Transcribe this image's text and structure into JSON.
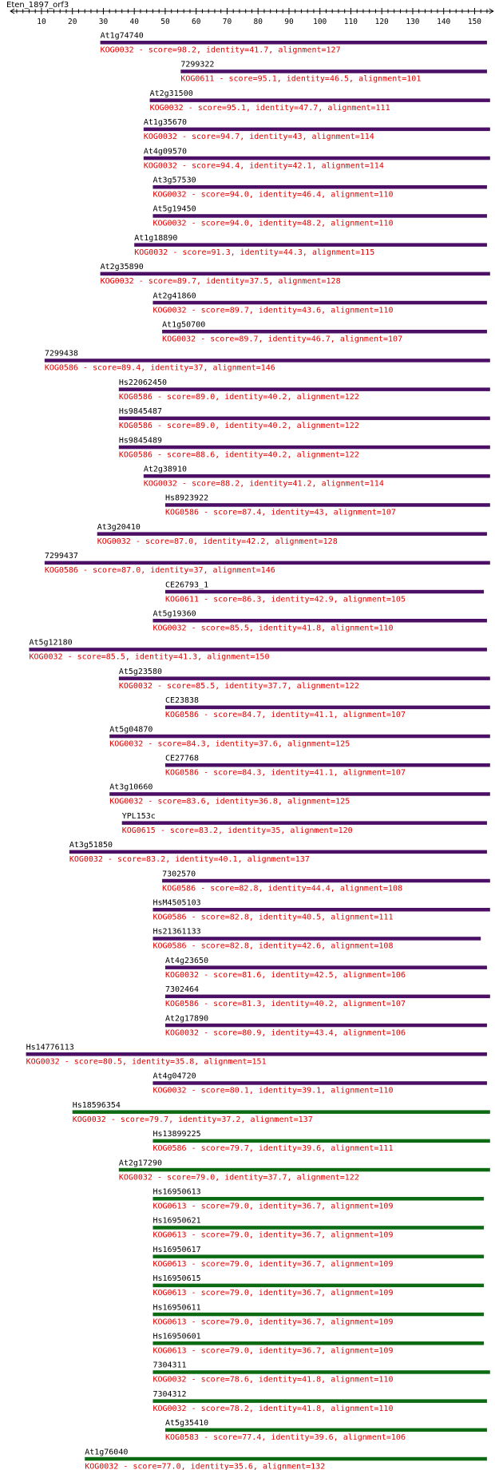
{
  "title": "Eten_1897_orf3",
  "colors": {
    "purple": "#4b0f66",
    "green": "#0c6b12",
    "desc": "#e00000",
    "axis": "#000000"
  },
  "chart_data": {
    "type": "alignment-map",
    "axis": {
      "min": 1,
      "max": 155,
      "ticks": [
        10,
        20,
        30,
        40,
        50,
        60,
        70,
        80,
        90,
        100,
        110,
        120,
        130,
        140,
        150
      ]
    },
    "hits": [
      {
        "name": "At1g74740",
        "desc": "KOG0032 - score=98.2, identity=41.7, alignment=127",
        "start": 29,
        "end": 154,
        "color": "purple"
      },
      {
        "name": "7299322",
        "desc": "KOG0611 - score=95.1, identity=46.5, alignment=101",
        "start": 55,
        "end": 154,
        "color": "purple"
      },
      {
        "name": "At2g31500",
        "desc": "KOG0032 - score=95.1, identity=47.7, alignment=111",
        "start": 45,
        "end": 155,
        "color": "purple"
      },
      {
        "name": "At1g35670",
        "desc": "KOG0032 - score=94.7, identity=43, alignment=114",
        "start": 43,
        "end": 155,
        "color": "purple"
      },
      {
        "name": "At4g09570",
        "desc": "KOG0032 - score=94.4, identity=42.1, alignment=114",
        "start": 43,
        "end": 155,
        "color": "purple"
      },
      {
        "name": "At3g57530",
        "desc": "KOG0032 - score=94.0, identity=46.4, alignment=110",
        "start": 46,
        "end": 154,
        "color": "purple"
      },
      {
        "name": "At5g19450",
        "desc": "KOG0032 - score=94.0, identity=48.2, alignment=110",
        "start": 46,
        "end": 154,
        "color": "purple"
      },
      {
        "name": "At1g18890",
        "desc": "KOG0032 - score=91.3, identity=44.3, alignment=115",
        "start": 40,
        "end": 154,
        "color": "purple"
      },
      {
        "name": "At2g35890",
        "desc": "KOG0032 - score=89.7, identity=37.5, alignment=128",
        "start": 29,
        "end": 155,
        "color": "purple"
      },
      {
        "name": "At2g41860",
        "desc": "KOG0032 - score=89.7, identity=43.6, alignment=110",
        "start": 46,
        "end": 154,
        "color": "purple"
      },
      {
        "name": "At1g50700",
        "desc": "KOG0032 - score=89.7, identity=46.7, alignment=107",
        "start": 49,
        "end": 154,
        "color": "purple"
      },
      {
        "name": "7299438",
        "desc": "KOG0586 - score=89.4, identity=37, alignment=146",
        "start": 11,
        "end": 155,
        "color": "purple"
      },
      {
        "name": "Hs22062450",
        "desc": "KOG0586 - score=89.0, identity=40.2, alignment=122",
        "start": 35,
        "end": 155,
        "color": "purple"
      },
      {
        "name": "Hs9845487",
        "desc": "KOG0586 - score=89.0, identity=40.2, alignment=122",
        "start": 35,
        "end": 155,
        "color": "purple"
      },
      {
        "name": "Hs9845489",
        "desc": "KOG0586 - score=88.6, identity=40.2, alignment=122",
        "start": 35,
        "end": 155,
        "color": "purple"
      },
      {
        "name": "At2g38910",
        "desc": "KOG0032 - score=88.2, identity=41.2, alignment=114",
        "start": 43,
        "end": 155,
        "color": "purple"
      },
      {
        "name": "Hs8923922",
        "desc": "KOG0586 - score=87.4, identity=43, alignment=107",
        "start": 50,
        "end": 155,
        "color": "purple"
      },
      {
        "name": "At3g20410",
        "desc": "KOG0032 - score=87.0, identity=42.2, alignment=128",
        "start": 28,
        "end": 154,
        "color": "purple"
      },
      {
        "name": "7299437",
        "desc": "KOG0586 - score=87.0, identity=37, alignment=146",
        "start": 11,
        "end": 155,
        "color": "purple"
      },
      {
        "name": "CE26793_1",
        "desc": "KOG0611 - score=86.3, identity=42.9, alignment=105",
        "start": 50,
        "end": 153,
        "color": "purple"
      },
      {
        "name": "At5g19360",
        "desc": "KOG0032 - score=85.5, identity=41.8, alignment=110",
        "start": 46,
        "end": 154,
        "color": "purple"
      },
      {
        "name": "At5g12180",
        "desc": "KOG0032 - score=85.5, identity=41.3, alignment=150",
        "start": 6,
        "end": 154,
        "color": "purple"
      },
      {
        "name": "At5g23580",
        "desc": "KOG0032 - score=85.5, identity=37.7, alignment=122",
        "start": 35,
        "end": 155,
        "color": "purple"
      },
      {
        "name": "CE23838",
        "desc": "KOG0586 - score=84.7, identity=41.1, alignment=107",
        "start": 50,
        "end": 155,
        "color": "purple"
      },
      {
        "name": "At5g04870",
        "desc": "KOG0032 - score=84.3, identity=37.6, alignment=125",
        "start": 32,
        "end": 155,
        "color": "purple"
      },
      {
        "name": "CE27768",
        "desc": "KOG0586 - score=84.3, identity=41.1, alignment=107",
        "start": 50,
        "end": 155,
        "color": "purple"
      },
      {
        "name": "At3g10660",
        "desc": "KOG0032 - score=83.6, identity=36.8, alignment=125",
        "start": 32,
        "end": 155,
        "color": "purple"
      },
      {
        "name": "YPL153c",
        "desc": "KOG0615 - score=83.2, identity=35, alignment=120",
        "start": 36,
        "end": 154,
        "color": "purple"
      },
      {
        "name": "At3g51850",
        "desc": "KOG0032 - score=83.2, identity=40.1, alignment=137",
        "start": 19,
        "end": 154,
        "color": "purple"
      },
      {
        "name": "7302570",
        "desc": "KOG0586 - score=82.8, identity=44.4, alignment=108",
        "start": 49,
        "end": 155,
        "color": "purple"
      },
      {
        "name": "HsM4505103",
        "desc": "KOG0586 - score=82.8, identity=40.5, alignment=111",
        "start": 46,
        "end": 155,
        "color": "purple"
      },
      {
        "name": "Hs21361133",
        "desc": "KOG0586 - score=82.8, identity=42.6, alignment=108",
        "start": 46,
        "end": 152,
        "color": "purple"
      },
      {
        "name": "At4g23650",
        "desc": "KOG0032 - score=81.6, identity=42.5, alignment=106",
        "start": 50,
        "end": 154,
        "color": "purple"
      },
      {
        "name": "7302464",
        "desc": "KOG0586 - score=81.3, identity=40.2, alignment=107",
        "start": 50,
        "end": 155,
        "color": "purple"
      },
      {
        "name": "At2g17890",
        "desc": "KOG0032 - score=80.9, identity=43.4, alignment=106",
        "start": 50,
        "end": 154,
        "color": "purple"
      },
      {
        "name": "Hs14776113",
        "desc": "KOG0032 - score=80.5, identity=35.8, alignment=151",
        "start": 5,
        "end": 154,
        "color": "purple"
      },
      {
        "name": "At4g04720",
        "desc": "KOG0032 - score=80.1, identity=39.1, alignment=110",
        "start": 46,
        "end": 154,
        "color": "purple"
      },
      {
        "name": "Hs18596354",
        "desc": "KOG0032 - score=79.7, identity=37.2, alignment=137",
        "start": 20,
        "end": 155,
        "color": "green"
      },
      {
        "name": "Hs13899225",
        "desc": "KOG0586 - score=79.7, identity=39.6, alignment=111",
        "start": 46,
        "end": 155,
        "color": "green"
      },
      {
        "name": "At2g17290",
        "desc": "KOG0032 - score=79.0, identity=37.7, alignment=122",
        "start": 35,
        "end": 155,
        "color": "green"
      },
      {
        "name": "Hs16950613",
        "desc": "KOG0613 - score=79.0, identity=36.7, alignment=109",
        "start": 46,
        "end": 153,
        "color": "green"
      },
      {
        "name": "Hs16950621",
        "desc": "KOG0613 - score=79.0, identity=36.7, alignment=109",
        "start": 46,
        "end": 153,
        "color": "green"
      },
      {
        "name": "Hs16950617",
        "desc": "KOG0613 - score=79.0, identity=36.7, alignment=109",
        "start": 46,
        "end": 153,
        "color": "green"
      },
      {
        "name": "Hs16950615",
        "desc": "KOG0613 - score=79.0, identity=36.7, alignment=109",
        "start": 46,
        "end": 153,
        "color": "green"
      },
      {
        "name": "Hs16950611",
        "desc": "KOG0613 - score=79.0, identity=36.7, alignment=109",
        "start": 46,
        "end": 153,
        "color": "green"
      },
      {
        "name": "Hs16950601",
        "desc": "KOG0613 - score=79.0, identity=36.7, alignment=109",
        "start": 46,
        "end": 153,
        "color": "green"
      },
      {
        "name": "7304311",
        "desc": "KOG0032 - score=78.6, identity=41.8, alignment=110",
        "start": 46,
        "end": 155,
        "color": "green"
      },
      {
        "name": "7304312",
        "desc": "KOG0032 - score=78.2, identity=41.8, alignment=110",
        "start": 46,
        "end": 154,
        "color": "green"
      },
      {
        "name": "At5g35410",
        "desc": "KOG0583 - score=77.4, identity=39.6, alignment=106",
        "start": 50,
        "end": 154,
        "color": "green"
      },
      {
        "name": "At1g76040",
        "desc": "KOG0032 - score=77.0, identity=35.6, alignment=132",
        "start": 24,
        "end": 154,
        "color": "green"
      }
    ]
  }
}
